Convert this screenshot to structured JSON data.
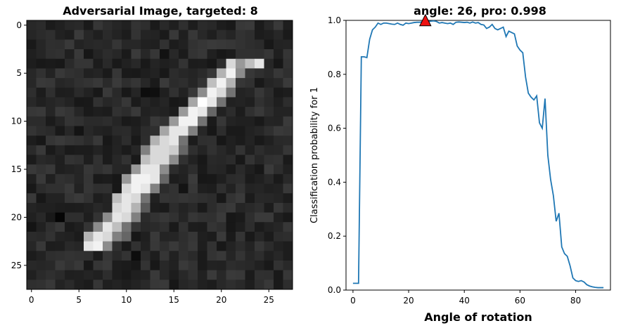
{
  "chart_data": [
    {
      "type": "heatmap",
      "title": "Adversarial Image, targeted: 8",
      "xlim": [
        -0.5,
        27.5
      ],
      "ylim": [
        27.5,
        -0.5
      ],
      "x_ticks": [
        0,
        5,
        10,
        15,
        20,
        25
      ],
      "y_ticks": [
        0,
        5,
        10,
        15,
        20,
        25
      ],
      "colormap": "gray",
      "background_level": 0.16,
      "stroke": [
        {
          "row": 4,
          "cols": [
            21,
            22,
            23,
            24
          ],
          "values": [
            0.85,
            0.6,
            0.75,
            0.9
          ]
        },
        {
          "row": 5,
          "cols": [
            20,
            21,
            22
          ],
          "values": [
            0.7,
            0.95,
            0.55
          ]
        },
        {
          "row": 6,
          "cols": [
            19,
            20,
            21
          ],
          "values": [
            0.75,
            0.95,
            0.7
          ]
        },
        {
          "row": 7,
          "cols": [
            18,
            19,
            20,
            21
          ],
          "values": [
            0.55,
            0.95,
            0.85,
            0.45
          ]
        },
        {
          "row": 8,
          "cols": [
            17,
            18,
            19,
            20
          ],
          "values": [
            0.65,
            1.0,
            0.9,
            0.45
          ]
        },
        {
          "row": 9,
          "cols": [
            16,
            17,
            18,
            19
          ],
          "values": [
            0.6,
            0.95,
            0.9,
            0.4
          ]
        },
        {
          "row": 10,
          "cols": [
            15,
            16,
            17,
            18
          ],
          "values": [
            0.6,
            0.95,
            0.95,
            0.45
          ]
        },
        {
          "row": 11,
          "cols": [
            14,
            15,
            16,
            17
          ],
          "values": [
            0.65,
            0.9,
            0.9,
            0.5
          ]
        },
        {
          "row": 12,
          "cols": [
            13,
            14,
            15,
            16
          ],
          "values": [
            0.7,
            0.85,
            0.9,
            0.45
          ]
        },
        {
          "row": 13,
          "cols": [
            12,
            13,
            14,
            15,
            16
          ],
          "values": [
            0.5,
            0.85,
            0.85,
            0.8,
            0.4
          ]
        },
        {
          "row": 14,
          "cols": [
            12,
            13,
            14,
            15
          ],
          "values": [
            0.75,
            0.85,
            0.85,
            0.55
          ]
        },
        {
          "row": 15,
          "cols": [
            11,
            12,
            13,
            14
          ],
          "values": [
            0.6,
            0.9,
            0.9,
            0.55
          ]
        },
        {
          "row": 16,
          "cols": [
            10,
            11,
            12,
            13,
            14
          ],
          "values": [
            0.6,
            0.95,
            0.95,
            0.9,
            0.4
          ]
        },
        {
          "row": 17,
          "cols": [
            10,
            11,
            12,
            13
          ],
          "values": [
            0.85,
            0.95,
            0.9,
            0.5
          ]
        },
        {
          "row": 18,
          "cols": [
            9,
            10,
            11,
            12
          ],
          "values": [
            0.75,
            0.9,
            0.85,
            0.45
          ]
        },
        {
          "row": 19,
          "cols": [
            9,
            10,
            11,
            12
          ],
          "values": [
            0.85,
            0.9,
            0.7,
            0.35
          ]
        },
        {
          "row": 20,
          "cols": [
            8,
            9,
            10,
            11
          ],
          "values": [
            0.55,
            0.9,
            0.85,
            0.5
          ]
        },
        {
          "row": 21,
          "cols": [
            7,
            8,
            9,
            10
          ],
          "values": [
            0.55,
            0.9,
            0.75,
            0.45
          ]
        },
        {
          "row": 22,
          "cols": [
            6,
            7,
            8,
            9,
            10
          ],
          "values": [
            0.7,
            0.9,
            0.85,
            0.5,
            0.4
          ]
        },
        {
          "row": 23,
          "cols": [
            6,
            7,
            8
          ],
          "values": [
            0.9,
            0.95,
            0.55
          ]
        }
      ],
      "dark_spots": [
        {
          "row": 20,
          "col": 3,
          "value": 0.02
        },
        {
          "row": 21,
          "col": 0,
          "value": 0.08
        },
        {
          "row": 24,
          "col": 11,
          "value": 0.05
        },
        {
          "row": 7,
          "col": 12,
          "value": 0.05
        },
        {
          "row": 7,
          "col": 13,
          "value": 0.06
        },
        {
          "row": 3,
          "col": 14,
          "value": 0.07
        },
        {
          "row": 17,
          "col": 16,
          "value": 0.08
        },
        {
          "row": 11,
          "col": 5,
          "value": 0.08
        }
      ]
    },
    {
      "type": "line",
      "title": "angle: 26, pro: 0.998",
      "xlabel": "Angle of rotation",
      "ylabel": "Classification probability for 1",
      "xlim": [
        -2.5,
        92.5
      ],
      "ylim": [
        0,
        1.0
      ],
      "x_ticks": [
        0,
        20,
        40,
        60,
        80
      ],
      "y_ticks": [
        0.0,
        0.2,
        0.4,
        0.6,
        0.8,
        1.0
      ],
      "x_tick_labels": [
        "0",
        "20",
        "40",
        "60",
        "80"
      ],
      "y_tick_labels": [
        "0.0",
        "0.2",
        "0.4",
        "0.6",
        "0.8",
        "1.0"
      ],
      "line_color": "#1f77b4",
      "marker": {
        "x": 26,
        "y": 0.998,
        "shape": "triangle",
        "color": "#ee1111"
      },
      "x": [
        0,
        1,
        2,
        3,
        4,
        5,
        6,
        7,
        8,
        9,
        10,
        11,
        12,
        13,
        14,
        15,
        16,
        17,
        18,
        19,
        20,
        21,
        22,
        23,
        24,
        25,
        26,
        27,
        28,
        29,
        30,
        31,
        32,
        33,
        34,
        35,
        36,
        37,
        38,
        39,
        40,
        41,
        42,
        43,
        44,
        45,
        46,
        47,
        48,
        49,
        50,
        51,
        52,
        53,
        54,
        55,
        56,
        57,
        58,
        59,
        60,
        61,
        62,
        63,
        64,
        65,
        66,
        67,
        68,
        69,
        70,
        71,
        72,
        73,
        74,
        75,
        76,
        77,
        78,
        79,
        80,
        81,
        82,
        83,
        84,
        85,
        86,
        87,
        88,
        89,
        90
      ],
      "y": [
        0.025,
        0.025,
        0.025,
        0.865,
        0.865,
        0.862,
        0.93,
        0.965,
        0.975,
        0.99,
        0.985,
        0.99,
        0.99,
        0.988,
        0.986,
        0.985,
        0.99,
        0.985,
        0.982,
        0.99,
        0.988,
        0.99,
        0.992,
        0.993,
        0.993,
        0.995,
        0.998,
        0.995,
        0.997,
        0.998,
        0.996,
        0.99,
        0.992,
        0.99,
        0.988,
        0.99,
        0.985,
        0.993,
        0.994,
        0.993,
        0.992,
        0.993,
        0.99,
        0.994,
        0.99,
        0.992,
        0.985,
        0.983,
        0.97,
        0.975,
        0.985,
        0.97,
        0.965,
        0.97,
        0.975,
        0.94,
        0.96,
        0.955,
        0.95,
        0.905,
        0.89,
        0.88,
        0.79,
        0.73,
        0.715,
        0.705,
        0.72,
        0.62,
        0.6,
        0.71,
        0.5,
        0.41,
        0.35,
        0.255,
        0.285,
        0.16,
        0.135,
        0.125,
        0.09,
        0.045,
        0.035,
        0.032,
        0.035,
        0.03,
        0.02,
        0.015,
        0.012,
        0.01,
        0.009,
        0.009,
        0.009
      ]
    }
  ]
}
